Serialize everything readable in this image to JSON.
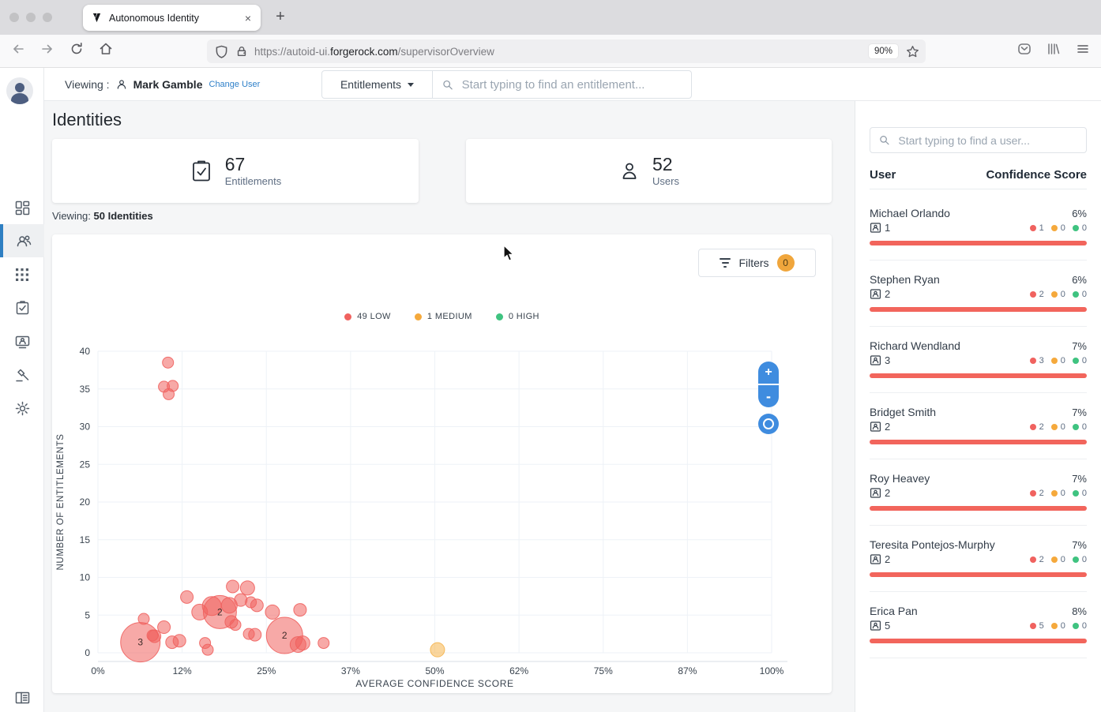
{
  "browser": {
    "tab": {
      "title": "Autonomous Identity",
      "close": "×"
    },
    "new_tab": "+",
    "url": {
      "scheme_sub": "https://autoid-ui.",
      "domain": "forgerock.com",
      "path": "/supervisorOverview"
    },
    "zoom_badge": "90%"
  },
  "appbar": {
    "viewing_label": "Viewing :",
    "user_name": "Mark Gamble",
    "change_user_link": "Change User",
    "entity_dropdown": "Entitlements",
    "entitlement_search_placeholder": "Start typing to find an entitlement..."
  },
  "main": {
    "title": "Identities",
    "stat_cards": [
      {
        "value": "67",
        "label": "Entitlements"
      },
      {
        "value": "52",
        "label": "Users"
      }
    ],
    "viewing_prefix": "Viewing:",
    "viewing_value": "50 Identities",
    "filters_button": {
      "label": "Filters",
      "badge": "0"
    }
  },
  "zoom_controls": {
    "zoom_in": "+",
    "zoom_out": "-"
  },
  "chart_data": {
    "type": "scatter",
    "xlabel": "AVERAGE CONFIDENCE SCORE",
    "ylabel": "NUMBER OF ENTITLEMENTS",
    "xlim": [
      0,
      100
    ],
    "ylim": [
      0,
      40
    ],
    "x_ticks": [
      {
        "label": "0%",
        "pos": 0
      },
      {
        "label": "12%",
        "pos": 12.5
      },
      {
        "label": "25%",
        "pos": 25
      },
      {
        "label": "37%",
        "pos": 37.5
      },
      {
        "label": "50%",
        "pos": 50
      },
      {
        "label": "62%",
        "pos": 62.5
      },
      {
        "label": "75%",
        "pos": 75
      },
      {
        "label": "87%",
        "pos": 87.5
      },
      {
        "label": "100%",
        "pos": 100
      }
    ],
    "y_ticks": [
      40,
      35,
      30,
      25,
      20,
      15,
      10,
      5,
      0
    ],
    "grid": true,
    "legend_position": "top-center",
    "legend": [
      {
        "label": "49 LOW",
        "color": "#f0625f"
      },
      {
        "label": "1 MEDIUM",
        "color": "#f5a93c"
      },
      {
        "label": "0 HIGH",
        "color": "#3fc380"
      }
    ],
    "series": [
      {
        "name": "LOW",
        "color": "#f0625f",
        "points": [
          {
            "x": 10.4,
            "y": 38.5,
            "r": 7
          },
          {
            "x": 9.8,
            "y": 35.3,
            "r": 7
          },
          {
            "x": 11.1,
            "y": 35.4,
            "r": 7
          },
          {
            "x": 10.5,
            "y": 34.3,
            "r": 7
          },
          {
            "x": 13.2,
            "y": 7.4,
            "r": 8
          },
          {
            "x": 6.8,
            "y": 4.5,
            "r": 7
          },
          {
            "x": 9.8,
            "y": 3.4,
            "r": 8
          },
          {
            "x": 8.1,
            "y": 2.3,
            "r": 7
          },
          {
            "x": 6.3,
            "y": 1.4,
            "r": 25,
            "label": "3"
          },
          {
            "x": 11.0,
            "y": 1.4,
            "r": 8
          },
          {
            "x": 12.1,
            "y": 1.6,
            "r": 8
          },
          {
            "x": 8.4,
            "y": 2.2,
            "r": 8
          },
          {
            "x": 20.0,
            "y": 8.8,
            "r": 8
          },
          {
            "x": 22.2,
            "y": 8.6,
            "r": 9
          },
          {
            "x": 21.2,
            "y": 7.0,
            "r": 8
          },
          {
            "x": 22.7,
            "y": 6.7,
            "r": 7
          },
          {
            "x": 15.1,
            "y": 5.4,
            "r": 10
          },
          {
            "x": 16.9,
            "y": 6.2,
            "r": 12
          },
          {
            "x": 18.1,
            "y": 5.4,
            "r": 21,
            "label": "2"
          },
          {
            "x": 19.5,
            "y": 6.3,
            "r": 10
          },
          {
            "x": 19.8,
            "y": 4.1,
            "r": 8
          },
          {
            "x": 20.4,
            "y": 3.7,
            "r": 7
          },
          {
            "x": 23.6,
            "y": 6.3,
            "r": 8
          },
          {
            "x": 25.9,
            "y": 5.4,
            "r": 9
          },
          {
            "x": 30.0,
            "y": 5.7,
            "r": 8
          },
          {
            "x": 22.4,
            "y": 2.5,
            "r": 7
          },
          {
            "x": 23.3,
            "y": 2.4,
            "r": 8
          },
          {
            "x": 15.9,
            "y": 1.3,
            "r": 7
          },
          {
            "x": 16.3,
            "y": 0.4,
            "r": 7
          },
          {
            "x": 27.7,
            "y": 2.3,
            "r": 23,
            "label": "2"
          },
          {
            "x": 29.7,
            "y": 1.1,
            "r": 10
          },
          {
            "x": 30.4,
            "y": 1.3,
            "r": 9
          },
          {
            "x": 33.5,
            "y": 1.3,
            "r": 7
          }
        ]
      },
      {
        "name": "MEDIUM",
        "color": "#f5b44c",
        "points": [
          {
            "x": 50.4,
            "y": 0.4,
            "r": 9
          }
        ]
      },
      {
        "name": "HIGH",
        "color": "#3fc380",
        "points": []
      }
    ]
  },
  "user_panel": {
    "search_placeholder": "Start typing to find a user...",
    "columns": {
      "user": "User",
      "score": "Confidence Score"
    },
    "rows": [
      {
        "name": "Michael Orlando",
        "score": "6%",
        "entitlements": "1",
        "low": "1",
        "medium": "0",
        "high": "0"
      },
      {
        "name": "Stephen Ryan",
        "score": "6%",
        "entitlements": "2",
        "low": "2",
        "medium": "0",
        "high": "0"
      },
      {
        "name": "Richard Wendland",
        "score": "7%",
        "entitlements": "3",
        "low": "3",
        "medium": "0",
        "high": "0"
      },
      {
        "name": "Bridget Smith",
        "score": "7%",
        "entitlements": "2",
        "low": "2",
        "medium": "0",
        "high": "0"
      },
      {
        "name": "Roy Heavey",
        "score": "7%",
        "entitlements": "2",
        "low": "2",
        "medium": "0",
        "high": "0"
      },
      {
        "name": "Teresita Pontejos-Murphy",
        "score": "7%",
        "entitlements": "2",
        "low": "2",
        "medium": "0",
        "high": "0"
      },
      {
        "name": "Erica Pan",
        "score": "8%",
        "entitlements": "5",
        "low": "5",
        "medium": "0",
        "high": "0"
      }
    ]
  },
  "colors": {
    "accent_blue": "#3f8cdf",
    "link_blue": "#2f80c9",
    "low_red": "#f0625f",
    "medium_orange": "#f5a93c",
    "high_green": "#3fc380",
    "bar_red": "#f2655c",
    "badge_orange": "#f0a63c"
  }
}
